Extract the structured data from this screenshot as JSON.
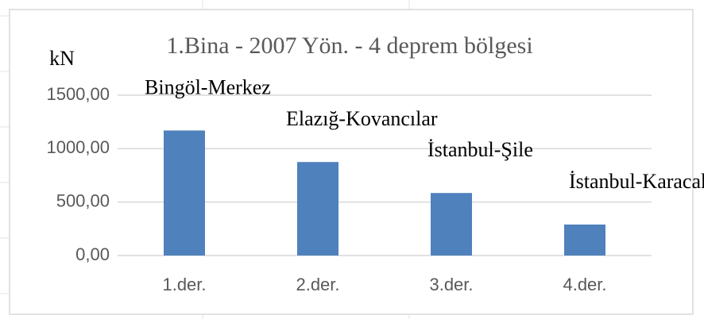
{
  "chart_data": {
    "type": "bar",
    "title": "1.Bina  - 2007 Yön. - 4 deprem bölgesi",
    "y_label": "kN",
    "categories": [
      "1.der.",
      "2.der.",
      "3.der.",
      "4.der."
    ],
    "values": [
      1170,
      875,
      585,
      290
    ],
    "annotations": [
      "Bingöl-Merkez",
      "Elazığ-Kovancılar",
      "İstanbul-Şile",
      "İstanbul-Karacaköy"
    ],
    "color": "#4f81bd",
    "ylim": [
      0,
      1500
    ],
    "yticks": [
      {
        "value": 0,
        "label": "0,00"
      },
      {
        "value": 500,
        "label": "500,00"
      },
      {
        "value": 1000,
        "label": "1000,00"
      },
      {
        "value": 1500,
        "label": "1500,00"
      }
    ],
    "grid": true
  }
}
